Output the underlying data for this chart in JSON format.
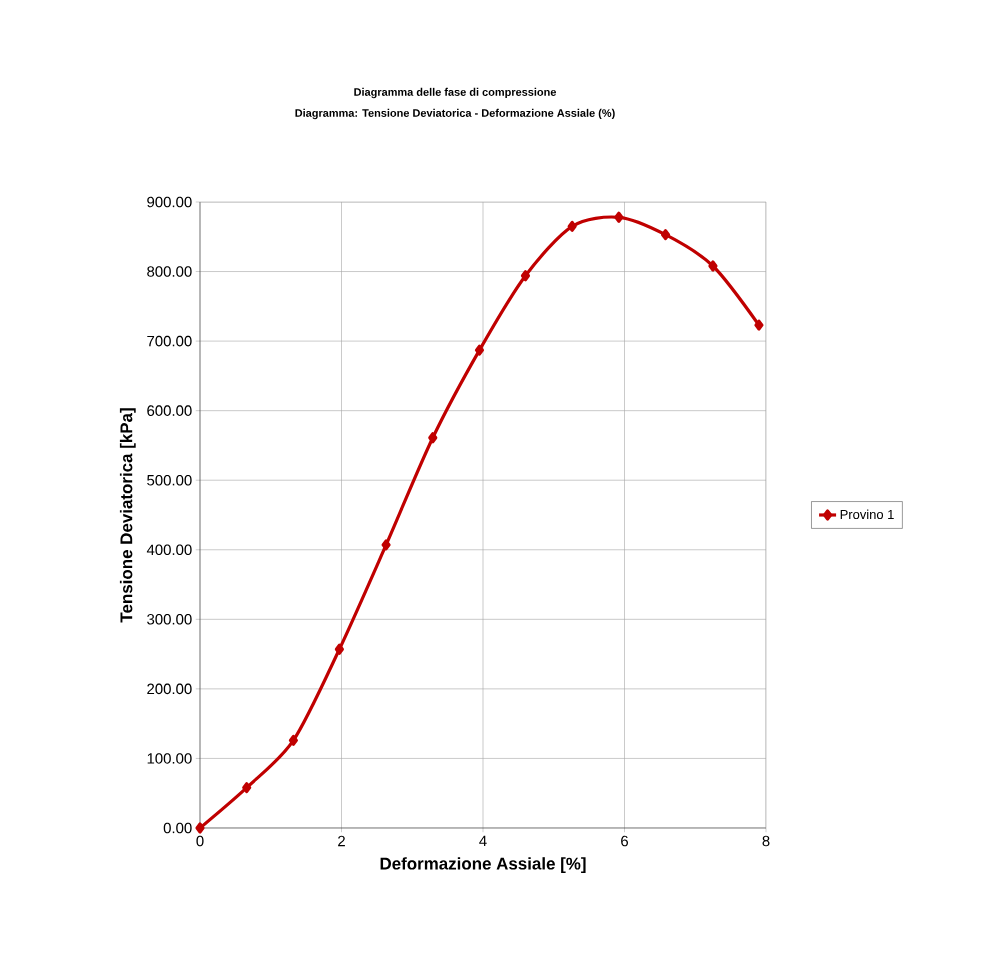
{
  "chart_data": {
    "type": "line",
    "title": "Diagramma delle fase di compressione",
    "subtitle": "Diagramma: Tensione Deviatorica - Deformazione Assiale (%)",
    "xlabel": "Deformazione Assiale [%]",
    "ylabel": "Tensione Deviatorica  [kPa]",
    "x": [
      0,
      0.66,
      1.32,
      1.97,
      2.63,
      3.29,
      3.95,
      4.6,
      5.26,
      5.92,
      6.58,
      7.25,
      7.9
    ],
    "series": [
      {
        "name": "Provino 1",
        "color": "#c00000",
        "values": [
          0,
          58,
          126,
          257,
          407,
          561,
          687,
          794,
          865,
          878,
          853,
          808,
          723
        ]
      }
    ],
    "xlim": [
      0,
      8
    ],
    "xticks": [
      0,
      2,
      4,
      6,
      8
    ],
    "ylim": [
      0,
      900
    ],
    "yticks": [
      {
        "value": 0,
        "label": "0.00"
      },
      {
        "value": 100,
        "label": "100.00"
      },
      {
        "value": 200,
        "label": "200.00"
      },
      {
        "value": 300,
        "label": "300.00"
      },
      {
        "value": 400,
        "label": "400.00"
      },
      {
        "value": 500,
        "label": "500.00"
      },
      {
        "value": 600,
        "label": "600.00"
      },
      {
        "value": 700,
        "label": "700.00"
      },
      {
        "value": 800,
        "label": "800.00"
      },
      {
        "value": 900,
        "label": "900.00"
      }
    ],
    "grid": true,
    "legend": "right",
    "marker": "diamond",
    "line_style": "solid"
  }
}
